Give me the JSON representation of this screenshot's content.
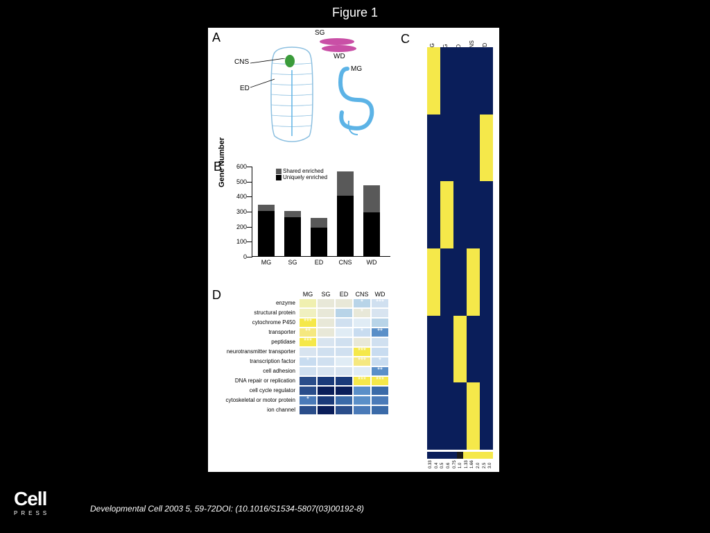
{
  "title": "Figure 1",
  "citation": "Developmental Cell 2003 5, 59-72DOI: (10.1016/S1534-5807(03)00192-8)",
  "logo": {
    "line1": "Cell",
    "line2": "PRESS"
  },
  "panelA": {
    "label": "A",
    "annotations": [
      "SG",
      "WD",
      "CNS",
      "ED",
      "MG"
    ],
    "colors": {
      "sg": "#c94fa6",
      "wd": "#c94fa6",
      "mg": "#5cb3e6",
      "cns": "#3a9b3a",
      "outline": "#8bbfe0"
    }
  },
  "panelB": {
    "label": "B",
    "y_title": "Gene Number",
    "y_ticks": [
      0,
      100,
      200,
      300,
      400,
      500,
      600
    ],
    "ylim": [
      0,
      600
    ],
    "categories": [
      "MG",
      "SG",
      "ED",
      "CNS",
      "WD"
    ],
    "shared": [
      40,
      40,
      65,
      165,
      180
    ],
    "unique": [
      300,
      260,
      190,
      400,
      290
    ],
    "legend": [
      {
        "label": "Shared enriched",
        "color": "#595959"
      },
      {
        "label": "Uniquely enriched",
        "color": "#000000"
      }
    ]
  },
  "panelC": {
    "label": "C",
    "cols": [
      "MG",
      "SG",
      "ED",
      "CNS",
      "WD"
    ],
    "rows": 120,
    "colors_low": "#0a1e5a",
    "colors_mid": "#1a1a1a",
    "colors_high": "#f5e84a",
    "scale_vals": [
      "0.33",
      "0.4",
      "0.5",
      "0.6",
      "0.75",
      "1.0",
      "1.33",
      "1.66",
      "2.0",
      "2.5",
      "3.0"
    ]
  },
  "panelD": {
    "label": "D",
    "cols": [
      "MG",
      "SG",
      "ED",
      "CNS",
      "WD"
    ],
    "rows": [
      "enzyme",
      "structural protein",
      "cytochrome P450",
      "transporter",
      "peptidase",
      "neurotransmitter transporter",
      "transcription factor",
      "cell adhesion",
      "DNA repair or replication",
      "cell cycle regulator",
      "cytoskeletal or motor protein",
      "ion channel"
    ],
    "cells": [
      [
        "#f0f0b0",
        "#e8e8d8",
        "#e8e8d8",
        "#b8d4e8",
        "#d0e0f0"
      ],
      [
        "#f0f0c0",
        "#e8e8d8",
        "#b8d4e8",
        "#e8e8d8",
        "#d8e4f0"
      ],
      [
        "#f5e84a",
        "#e8e8d8",
        "#d0e0f0",
        "#e0ecf5",
        "#b8d4e8"
      ],
      [
        "#f5e880",
        "#e8e8d8",
        "#e0ecf5",
        "#c8dcf0",
        "#5a8fc8"
      ],
      [
        "#f5e84a",
        "#d8e4f0",
        "#d0e0f0",
        "#e8e8d8",
        "#d0e0f0"
      ],
      [
        "#d8e4f0",
        "#d0e0f0",
        "#d0e0f0",
        "#f5e84a",
        "#c8dcf0"
      ],
      [
        "#c8dcf0",
        "#d0e0f0",
        "#e0ecf5",
        "#f5e880",
        "#c8dcf0"
      ],
      [
        "#d0e0f0",
        "#d8e4f0",
        "#d8e4f0",
        "#e0ecf5",
        "#5a8fc8"
      ],
      [
        "#2a4d8a",
        "#1a3a7a",
        "#1a3a7a",
        "#f5e84a",
        "#f5e84a"
      ],
      [
        "#2a4d8a",
        "#0a1e5a",
        "#0a1e5a",
        "#5a8fc8",
        "#3a6aa8"
      ],
      [
        "#4a7ab8",
        "#1a3a7a",
        "#3a6aa8",
        "#5a8fc8",
        "#4a7ab8"
      ],
      [
        "#2a4d8a",
        "#0a1e5a",
        "#2a4d8a",
        "#4a7ab8",
        "#3a6aa8"
      ]
    ],
    "stars": [
      [
        null,
        null,
        null,
        "*",
        "***"
      ],
      [
        null,
        null,
        null,
        "*",
        null
      ],
      [
        "***",
        null,
        null,
        null,
        null
      ],
      [
        "**",
        null,
        null,
        "*",
        "**"
      ],
      [
        "***",
        null,
        null,
        null,
        null
      ],
      [
        null,
        null,
        null,
        "***",
        null
      ],
      [
        "*",
        null,
        null,
        "***",
        "*"
      ],
      [
        null,
        null,
        null,
        null,
        "**"
      ],
      [
        null,
        null,
        null,
        "***",
        "***"
      ],
      [
        null,
        null,
        null,
        null,
        null
      ],
      [
        "*",
        null,
        null,
        null,
        null
      ],
      [
        null,
        null,
        null,
        null,
        null
      ]
    ]
  }
}
